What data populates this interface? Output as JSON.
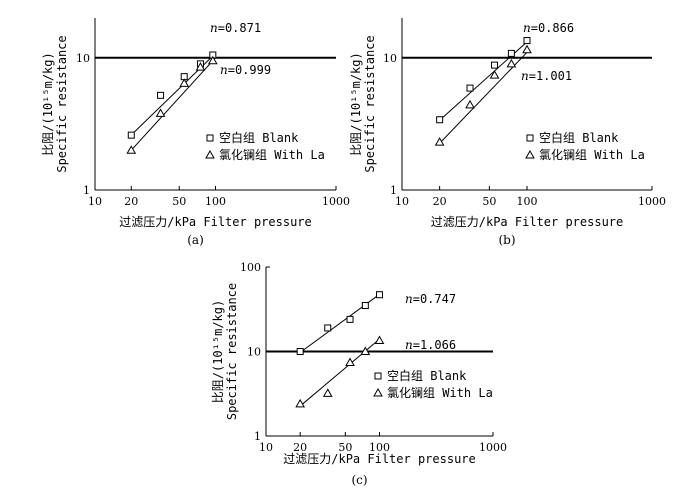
{
  "chart_data": [
    {
      "type": "scatter",
      "panel_label": "(a)",
      "xscale": "log",
      "yscale": "log",
      "xlim": [
        10,
        1000
      ],
      "ylim": [
        1,
        20
      ],
      "x_ticks": [
        "10",
        "20",
        "50",
        "100",
        "1000"
      ],
      "y_ticks": [
        "1",
        "10"
      ],
      "xlabel": "过滤压力/kPa Filter pressure",
      "ylabel_line1": "比阻/(10¹⁵m/kg)",
      "ylabel_line2": "Specific resistance",
      "reference_y": 10,
      "legend": {
        "blank": "空白组 Blank",
        "la": "氯化镧组 With La"
      },
      "series": [
        {
          "name": "空白组 Blank",
          "marker": "square",
          "x": [
            20,
            35,
            55,
            75,
            95
          ],
          "y": [
            2.6,
            5.2,
            7.2,
            9.0,
            10.5
          ],
          "fit_label": "n=0.871"
        },
        {
          "name": "氯化镧组 With La",
          "marker": "triangle",
          "x": [
            20,
            35,
            55,
            75,
            95
          ],
          "y": [
            2.0,
            3.8,
            6.4,
            8.5,
            9.5
          ],
          "fit_label": "n=0.999"
        }
      ]
    },
    {
      "type": "scatter",
      "panel_label": "(b)",
      "xscale": "log",
      "yscale": "log",
      "xlim": [
        10,
        1000
      ],
      "ylim": [
        1,
        20
      ],
      "x_ticks": [
        "10",
        "20",
        "50",
        "100",
        "1000"
      ],
      "y_ticks": [
        "1",
        "10"
      ],
      "xlabel": "过滤压力/kPa Filter pressure",
      "ylabel_line1": "比阻/(10¹⁵m/kg)",
      "ylabel_line2": "Specific resistance",
      "reference_y": 10,
      "legend": {
        "blank": "空白组 Blank",
        "la": "氯化镧组 With La"
      },
      "series": [
        {
          "name": "空白组 Blank",
          "marker": "square",
          "x": [
            20,
            35,
            55,
            75,
            100
          ],
          "y": [
            3.4,
            5.9,
            8.8,
            10.8,
            13.5
          ],
          "fit_label": "n=0.866"
        },
        {
          "name": "氯化镧组 With La",
          "marker": "triangle",
          "x": [
            20,
            35,
            55,
            75,
            100
          ],
          "y": [
            2.3,
            4.4,
            7.4,
            9.0,
            11.5
          ],
          "fit_label": "n=1.001"
        }
      ]
    },
    {
      "type": "scatter",
      "panel_label": "(c)",
      "xscale": "log",
      "yscale": "log",
      "xlim": [
        10,
        1000
      ],
      "ylim": [
        1,
        100
      ],
      "x_ticks": [
        "10",
        "20",
        "50",
        "100",
        "1000"
      ],
      "y_ticks": [
        "1",
        "10",
        "100"
      ],
      "xlabel": "过滤压力/kPa Filter pressure",
      "ylabel_line1": "比阻/(10¹⁵m/kg)",
      "ylabel_line2": "Specific resistance",
      "reference_y": 10,
      "legend": {
        "blank": "空白组 Blank",
        "la": "氯化镧组 With La"
      },
      "series": [
        {
          "name": "空白组 Blank",
          "marker": "square",
          "x": [
            20,
            35,
            55,
            75,
            100
          ],
          "y": [
            10,
            19,
            24,
            35,
            47
          ],
          "fit_label": "n=0.747"
        },
        {
          "name": "氯化镧组 With La",
          "marker": "triangle",
          "x": [
            20,
            35,
            55,
            75,
            100
          ],
          "y": [
            2.4,
            3.2,
            7.4,
            10,
            13.5
          ],
          "fit_label": "n=1.066"
        }
      ]
    }
  ]
}
